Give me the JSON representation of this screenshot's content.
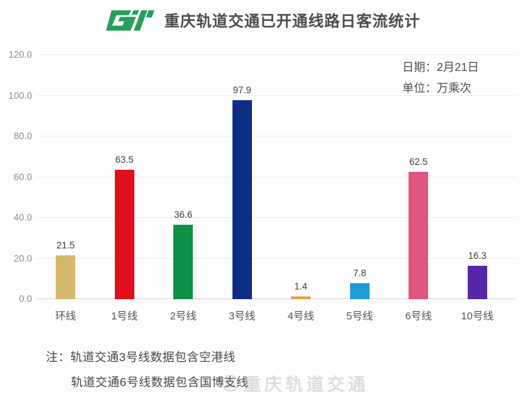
{
  "header": {
    "title": "重庆轨道交通已开通线路日客流统计",
    "logo_name": "crt-logo",
    "logo_color": "#23a05b"
  },
  "meta": {
    "date_label": "日期：2月21日",
    "unit_label": "单位：万乘次"
  },
  "chart_data": {
    "type": "bar",
    "title": "重庆轨道交通已开通线路日客流统计",
    "date": "2月21日",
    "unit": "万乘次",
    "categories": [
      "环线",
      "1号线",
      "2号线",
      "3号线",
      "4号线",
      "5号线",
      "6号线",
      "10号线"
    ],
    "values": [
      21.5,
      63.5,
      36.6,
      97.9,
      1.4,
      7.8,
      62.5,
      16.3
    ],
    "bar_colors": [
      "#d5b96c",
      "#df0f1e",
      "#0d9048",
      "#0e2e86",
      "#e2a33d",
      "#1b9dd9",
      "#e1567c",
      "#5527a7"
    ],
    "ylim": [
      0,
      120
    ],
    "ytick_values": [
      0,
      20,
      40,
      60,
      80,
      100,
      120
    ],
    "ytick_labels": [
      "0.0",
      "20.0",
      "40.0",
      "60.0",
      "80.0",
      "100.0",
      "120.0"
    ],
    "grid": true,
    "legend": false,
    "value_labels_shown": true
  },
  "notes": {
    "line1": "注：轨道交通3号线数据包含空港线",
    "line2": "轨道交通6号线数据包含国博支线"
  },
  "watermark": {
    "text": "重庆轨道交通",
    "icon": "weibo-spiral-icon"
  }
}
